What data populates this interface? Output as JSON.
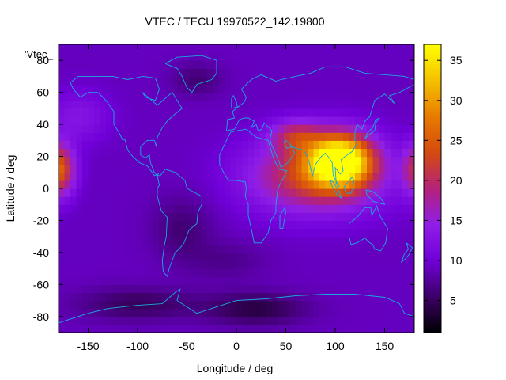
{
  "chart_data": {
    "type": "heatmap",
    "title": "VTEC / TECU 19970522_142.19800",
    "xlabel": "Longitude / deg",
    "ylabel": "Latitude / deg",
    "xlim": [
      -180,
      180
    ],
    "ylim": [
      -90,
      90
    ],
    "x_ticks": [
      -150,
      -100,
      -50,
      0,
      50,
      100,
      150
    ],
    "y_ticks": [
      -80,
      -60,
      -40,
      -20,
      0,
      20,
      40,
      60,
      80
    ],
    "legend_label": "'Vtec_",
    "colorbar": {
      "range": [
        1,
        37
      ],
      "ticks": [
        5,
        10,
        15,
        20,
        25,
        30,
        35
      ],
      "colormap": [
        "#000000",
        "#3c0066",
        "#7000d8",
        "#8f1ee8",
        "#b4227a",
        "#d44a10",
        "#e87a00",
        "#f5c000",
        "#ffff00"
      ]
    },
    "base_level": 9,
    "features": [
      {
        "name": "asia-peak",
        "lon": 105,
        "lat": 18,
        "amp": 28,
        "sx": 32,
        "sy": 16
      },
      {
        "name": "asia-band",
        "lon": 80,
        "lat": 8,
        "amp": 14,
        "sx": 65,
        "sy": 22
      },
      {
        "name": "asia-north-arm",
        "lon": 60,
        "lat": 33,
        "amp": 9,
        "sx": 25,
        "sy": 10
      },
      {
        "name": "pacific-west-edge",
        "lon": -180,
        "lat": 12,
        "amp": 17,
        "sx": 16,
        "sy": 16
      },
      {
        "name": "pacific-east-edge",
        "lon": 180,
        "lat": 12,
        "amp": 10,
        "sx": 12,
        "sy": 16
      },
      {
        "name": "north-pacific-glow",
        "lon": -160,
        "lat": 45,
        "amp": 4,
        "sx": 30,
        "sy": 15
      },
      {
        "name": "south-america-low",
        "lon": -55,
        "lat": -25,
        "amp": -3,
        "sx": 30,
        "sy": 20
      },
      {
        "name": "greenland-low",
        "lon": -40,
        "lat": 68,
        "amp": -3,
        "sx": 25,
        "sy": 10
      },
      {
        "name": "south-atlantic-low",
        "lon": -10,
        "lat": -45,
        "amp": -2,
        "sx": 40,
        "sy": 12
      },
      {
        "name": "antarctic-low-west",
        "lon": -100,
        "lat": -72,
        "amp": -4,
        "sx": 60,
        "sy": 10
      },
      {
        "name": "antarctic-low-east",
        "lon": 20,
        "lat": -75,
        "amp": -5,
        "sx": 50,
        "sy": 10
      }
    ],
    "coastlines": [
      {
        "name": "north-america",
        "points": [
          [
            -168,
            66
          ],
          [
            -160,
            70
          ],
          [
            -140,
            70
          ],
          [
            -125,
            70
          ],
          [
            -110,
            68
          ],
          [
            -95,
            70
          ],
          [
            -82,
            69
          ],
          [
            -78,
            62
          ],
          [
            -82,
            55
          ],
          [
            -92,
            57
          ],
          [
            -95,
            60
          ],
          [
            -80,
            52
          ],
          [
            -65,
            60
          ],
          [
            -60,
            55
          ],
          [
            -55,
            50
          ],
          [
            -65,
            45
          ],
          [
            -70,
            42
          ],
          [
            -75,
            38
          ],
          [
            -80,
            32
          ],
          [
            -81,
            26
          ],
          [
            -83,
            30
          ],
          [
            -90,
            30
          ],
          [
            -97,
            26
          ],
          [
            -97,
            21
          ],
          [
            -92,
            19
          ],
          [
            -88,
            21
          ],
          [
            -87,
            16
          ],
          [
            -83,
            10
          ],
          [
            -80,
            8
          ],
          [
            -79,
            9
          ],
          [
            -83,
            8
          ],
          [
            -90,
            14
          ],
          [
            -98,
            16
          ],
          [
            -105,
            20
          ],
          [
            -110,
            24
          ],
          [
            -113,
            31
          ],
          [
            -115,
            30
          ],
          [
            -118,
            34
          ],
          [
            -124,
            40
          ],
          [
            -124,
            48
          ],
          [
            -132,
            55
          ],
          [
            -140,
            60
          ],
          [
            -150,
            60
          ],
          [
            -158,
            57
          ],
          [
            -165,
            62
          ],
          [
            -168,
            66
          ]
        ]
      },
      {
        "name": "greenland",
        "points": [
          [
            -72,
            78
          ],
          [
            -60,
            82
          ],
          [
            -35,
            83
          ],
          [
            -20,
            80
          ],
          [
            -20,
            72
          ],
          [
            -25,
            68
          ],
          [
            -40,
            65
          ],
          [
            -45,
            60
          ],
          [
            -50,
            63
          ],
          [
            -55,
            70
          ],
          [
            -60,
            75
          ],
          [
            -72,
            78
          ]
        ]
      },
      {
        "name": "south-america",
        "points": [
          [
            -80,
            8
          ],
          [
            -77,
            8
          ],
          [
            -72,
            12
          ],
          [
            -62,
            10
          ],
          [
            -52,
            5
          ],
          [
            -50,
            0
          ],
          [
            -44,
            -2
          ],
          [
            -35,
            -5
          ],
          [
            -35,
            -10
          ],
          [
            -39,
            -15
          ],
          [
            -40,
            -22
          ],
          [
            -48,
            -26
          ],
          [
            -53,
            -34
          ],
          [
            -58,
            -38
          ],
          [
            -62,
            -40
          ],
          [
            -65,
            -45
          ],
          [
            -68,
            -50
          ],
          [
            -70,
            -55
          ],
          [
            -74,
            -52
          ],
          [
            -75,
            -45
          ],
          [
            -73,
            -36
          ],
          [
            -71,
            -30
          ],
          [
            -70,
            -18
          ],
          [
            -76,
            -14
          ],
          [
            -80,
            -5
          ],
          [
            -80,
            0
          ],
          [
            -78,
            2
          ],
          [
            -80,
            8
          ]
        ]
      },
      {
        "name": "africa",
        "points": [
          [
            -17,
            21
          ],
          [
            -17,
            15
          ],
          [
            -13,
            10
          ],
          [
            -8,
            5
          ],
          [
            0,
            5
          ],
          [
            9,
            4
          ],
          [
            10,
            0
          ],
          [
            9,
            -5
          ],
          [
            12,
            -10
          ],
          [
            12,
            -17
          ],
          [
            15,
            -25
          ],
          [
            18,
            -34
          ],
          [
            25,
            -34
          ],
          [
            32,
            -28
          ],
          [
            35,
            -20
          ],
          [
            40,
            -15
          ],
          [
            40,
            -10
          ],
          [
            42,
            0
          ],
          [
            51,
            11
          ],
          [
            43,
            12
          ],
          [
            38,
            18
          ],
          [
            32,
            30
          ],
          [
            20,
            32
          ],
          [
            10,
            37
          ],
          [
            0,
            36
          ],
          [
            -6,
            35
          ],
          [
            -10,
            30
          ],
          [
            -17,
            21
          ]
        ]
      },
      {
        "name": "eurasia",
        "points": [
          [
            -10,
            36
          ],
          [
            -9,
            43
          ],
          [
            -2,
            44
          ],
          [
            -4,
            48
          ],
          [
            2,
            51
          ],
          [
            8,
            54
          ],
          [
            10,
            57
          ],
          [
            5,
            62
          ],
          [
            15,
            68
          ],
          [
            25,
            71
          ],
          [
            40,
            67
          ],
          [
            45,
            68
          ],
          [
            60,
            70
          ],
          [
            75,
            72
          ],
          [
            90,
            76
          ],
          [
            110,
            76
          ],
          [
            130,
            72
          ],
          [
            150,
            71
          ],
          [
            170,
            70
          ],
          [
            180,
            68
          ],
          [
            180,
            65
          ],
          [
            165,
            60
          ],
          [
            155,
            58
          ],
          [
            160,
            53
          ],
          [
            150,
            59
          ],
          [
            140,
            55
          ],
          [
            135,
            45
          ],
          [
            130,
            42
          ],
          [
            127,
            37
          ],
          [
            122,
            40
          ],
          [
            120,
            35
          ],
          [
            120,
            30
          ],
          [
            122,
            28
          ],
          [
            117,
            23
          ],
          [
            110,
            20
          ],
          [
            106,
            18
          ],
          [
            108,
            11
          ],
          [
            105,
            9
          ],
          [
            100,
            13
          ],
          [
            101,
            3
          ],
          [
            104,
            1
          ],
          [
            98,
            8
          ],
          [
            97,
            16
          ],
          [
            94,
            19
          ],
          [
            90,
            22
          ],
          [
            86,
            20
          ],
          [
            80,
            15
          ],
          [
            77,
            8
          ],
          [
            72,
            20
          ],
          [
            68,
            24
          ],
          [
            60,
            25
          ],
          [
            57,
            26
          ],
          [
            50,
            30
          ],
          [
            48,
            29
          ],
          [
            51,
            25
          ],
          [
            56,
            26
          ],
          [
            59,
            22
          ],
          [
            52,
            16
          ],
          [
            45,
            13
          ],
          [
            43,
            17
          ],
          [
            35,
            28
          ],
          [
            34,
            31
          ],
          [
            36,
            36
          ],
          [
            28,
            41
          ],
          [
            26,
            37
          ],
          [
            22,
            36
          ],
          [
            20,
            40
          ],
          [
            15,
            38
          ],
          [
            18,
            42
          ],
          [
            12,
            44
          ],
          [
            8,
            44
          ],
          [
            3,
            43
          ],
          [
            -2,
            37
          ],
          [
            -10,
            36
          ]
        ]
      },
      {
        "name": "madagascar",
        "points": [
          [
            44,
            -25
          ],
          [
            47,
            -25
          ],
          [
            50,
            -15
          ],
          [
            49,
            -12
          ],
          [
            44,
            -17
          ],
          [
            44,
            -25
          ]
        ]
      },
      {
        "name": "australia",
        "points": [
          [
            114,
            -22
          ],
          [
            122,
            -18
          ],
          [
            130,
            -12
          ],
          [
            136,
            -12
          ],
          [
            137,
            -17
          ],
          [
            142,
            -11
          ],
          [
            146,
            -18
          ],
          [
            153,
            -25
          ],
          [
            151,
            -34
          ],
          [
            146,
            -39
          ],
          [
            140,
            -38
          ],
          [
            138,
            -35
          ],
          [
            135,
            -34
          ],
          [
            130,
            -31
          ],
          [
            122,
            -34
          ],
          [
            116,
            -35
          ],
          [
            114,
            -30
          ],
          [
            114,
            -22
          ]
        ]
      },
      {
        "name": "borneo",
        "points": [
          [
            109,
            1
          ],
          [
            113,
            4
          ],
          [
            117,
            7
          ],
          [
            119,
            5
          ],
          [
            118,
            1
          ],
          [
            116,
            -3
          ],
          [
            111,
            -3
          ],
          [
            109,
            1
          ]
        ]
      },
      {
        "name": "sumatra",
        "points": [
          [
            95,
            5
          ],
          [
            98,
            4
          ],
          [
            104,
            -2
          ],
          [
            106,
            -6
          ],
          [
            102,
            -4
          ],
          [
            97,
            1
          ],
          [
            95,
            5
          ]
        ]
      },
      {
        "name": "japan",
        "points": [
          [
            130,
            31
          ],
          [
            135,
            34
          ],
          [
            140,
            36
          ],
          [
            141,
            41
          ],
          [
            145,
            44
          ],
          [
            141,
            43
          ],
          [
            138,
            38
          ],
          [
            133,
            35
          ],
          [
            130,
            31
          ]
        ]
      },
      {
        "name": "uk",
        "points": [
          [
            -5,
            50
          ],
          [
            1,
            51
          ],
          [
            0,
            54
          ],
          [
            -3,
            58
          ],
          [
            -5,
            56
          ],
          [
            -5,
            50
          ]
        ]
      },
      {
        "name": "new-zealand",
        "points": [
          [
            172,
            -34
          ],
          [
            178,
            -37
          ],
          [
            175,
            -41
          ],
          [
            171,
            -44
          ],
          [
            167,
            -46
          ],
          [
            170,
            -41
          ],
          [
            174,
            -38
          ],
          [
            172,
            -34
          ]
        ]
      },
      {
        "name": "new-guinea",
        "points": [
          [
            131,
            -1
          ],
          [
            138,
            -2
          ],
          [
            146,
            -6
          ],
          [
            150,
            -10
          ],
          [
            143,
            -9
          ],
          [
            138,
            -8
          ],
          [
            132,
            -4
          ],
          [
            131,
            -1
          ]
        ]
      },
      {
        "name": "antarctica",
        "points": [
          [
            -180,
            -84
          ],
          [
            -150,
            -78
          ],
          [
            -130,
            -75
          ],
          [
            -100,
            -73
          ],
          [
            -75,
            -72
          ],
          [
            -62,
            -65
          ],
          [
            -57,
            -63
          ],
          [
            -60,
            -70
          ],
          [
            -40,
            -78
          ],
          [
            -20,
            -74
          ],
          [
            0,
            -70
          ],
          [
            30,
            -69
          ],
          [
            60,
            -67
          ],
          [
            90,
            -66
          ],
          [
            120,
            -66
          ],
          [
            150,
            -68
          ],
          [
            165,
            -72
          ],
          [
            170,
            -78
          ],
          [
            180,
            -80
          ]
        ]
      }
    ]
  }
}
